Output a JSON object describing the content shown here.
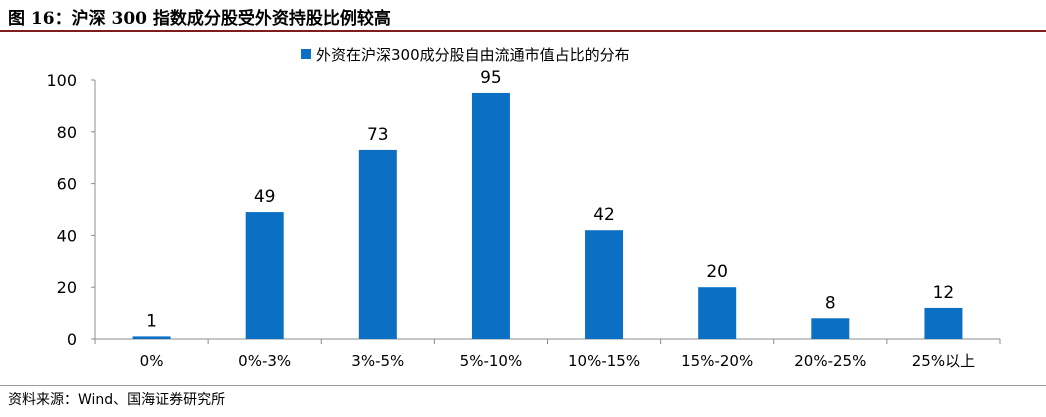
{
  "figure": {
    "title": "图 16：沪深 300 指数成分股受外资持股比例较高",
    "source": "资料来源：Wind、国海证券研究所"
  },
  "chart_data": {
    "type": "bar",
    "categories": [
      "0%",
      "0%-3%",
      "3%-5%",
      "5%-10%",
      "10%-15%",
      "15%-20%",
      "20%-25%",
      "25%以上"
    ],
    "series": [
      {
        "name": "外资在沪深300成分股自由流通市值占比的分布",
        "values": [
          1,
          49,
          73,
          95,
          42,
          20,
          8,
          12
        ],
        "color": "#0b6fc4"
      }
    ],
    "title": "",
    "xlabel": "",
    "ylabel": "",
    "ylim": [
      0,
      100
    ],
    "yticks": [
      0,
      20,
      40,
      60,
      80,
      100
    ],
    "grid": false,
    "legend": "top-center",
    "data_labels": true
  }
}
